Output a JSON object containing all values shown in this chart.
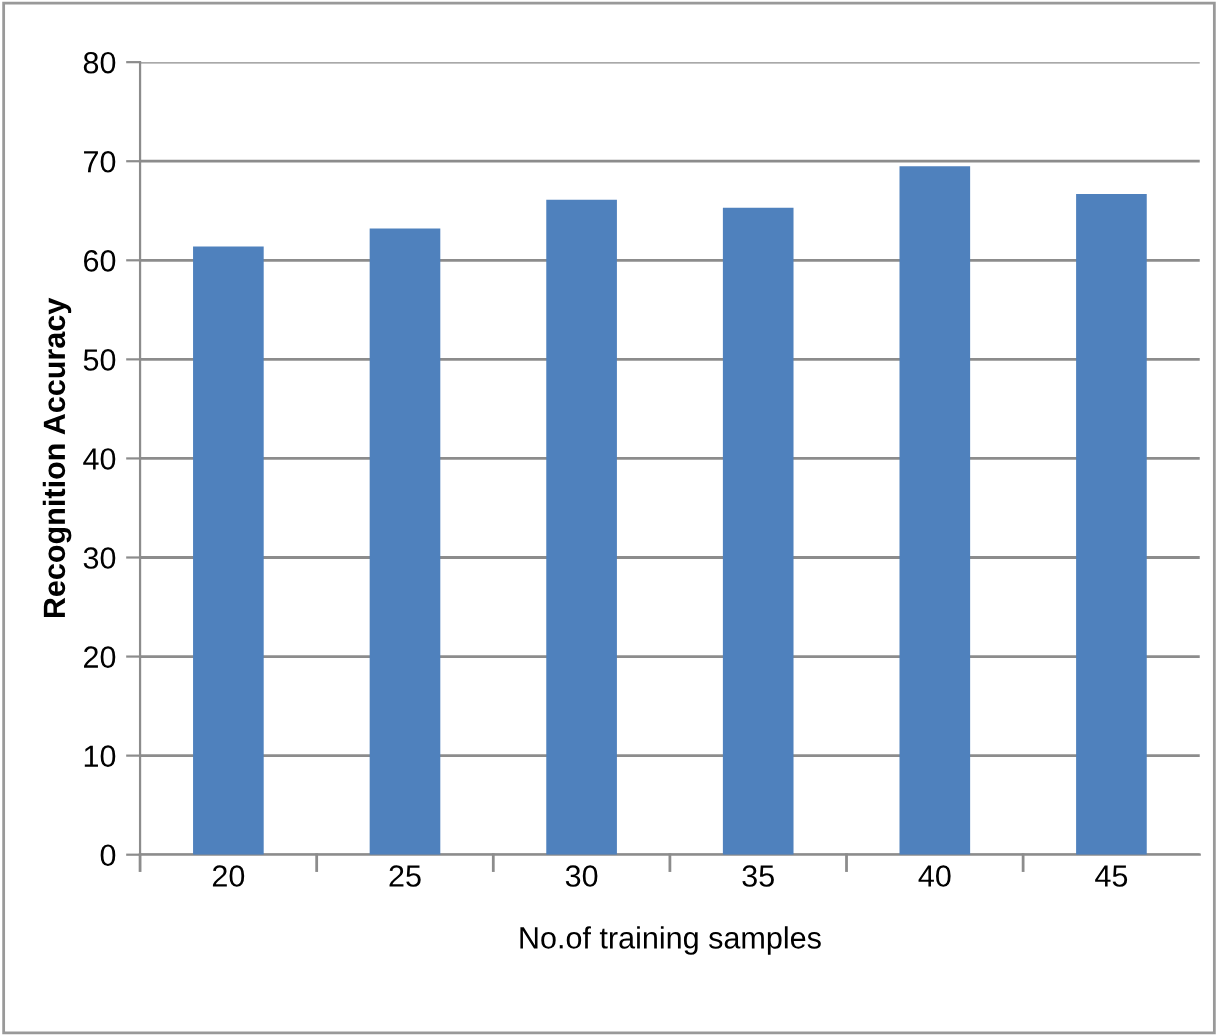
{
  "chart_data": {
    "type": "bar",
    "xlabel": "No.of training samples",
    "ylabel": "Recognition Accuracy",
    "categories": [
      "20",
      "25",
      "30",
      "35",
      "40",
      "45"
    ],
    "values": [
      61.4,
      63.2,
      66.1,
      65.3,
      69.5,
      66.7
    ],
    "color": "#4f81bd",
    "ylim": [
      0,
      80
    ],
    "yticks": [
      0,
      10,
      20,
      30,
      40,
      50,
      60,
      70,
      80
    ],
    "grid": "y",
    "legend": false
  }
}
